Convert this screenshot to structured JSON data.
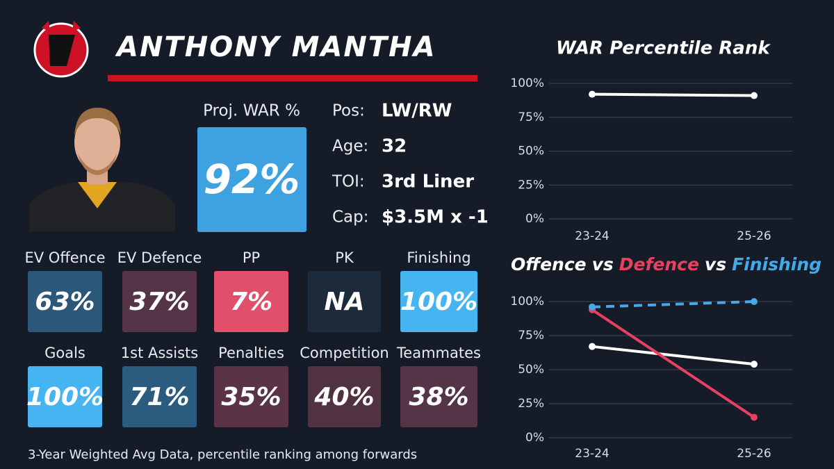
{
  "header": {
    "name": "ANTHONY MANTHA"
  },
  "projection": {
    "label": "Proj. WAR %",
    "value": "92%"
  },
  "info": [
    {
      "label": "Pos:",
      "value": "LW/RW"
    },
    {
      "label": "Age:",
      "value": "32"
    },
    {
      "label": "TOI:",
      "value": "3rd Liner"
    },
    {
      "label": "Cap:",
      "value": "$3.5M x -1"
    }
  ],
  "stats": [
    {
      "label": "EV Offence",
      "value": "63%",
      "color": "#2b5778"
    },
    {
      "label": "EV Defence",
      "value": "37%",
      "color": "#553447"
    },
    {
      "label": "PP",
      "value": "7%",
      "color": "#e0506a"
    },
    {
      "label": "PK",
      "value": "NA",
      "color": "#1d2a3b"
    },
    {
      "label": "Finishing",
      "value": "100%",
      "color": "#45b4f0"
    },
    {
      "label": "Goals",
      "value": "100%",
      "color": "#45b4f0"
    },
    {
      "label": "1st Assists",
      "value": "71%",
      "color": "#2b5c80"
    },
    {
      "label": "Penalties",
      "value": "35%",
      "color": "#5a3446"
    },
    {
      "label": "Competition",
      "value": "40%",
      "color": "#513241"
    },
    {
      "label": "Teammates",
      "value": "38%",
      "color": "#553447"
    }
  ],
  "footnote": "3-Year Weighted Avg Data, percentile ranking among forwards",
  "chart_data": [
    {
      "type": "line",
      "title": "WAR Percentile Rank",
      "categories": [
        "23-24",
        "25-26"
      ],
      "series": [
        {
          "name": "WAR",
          "color": "#ffffff",
          "linestyle": "solid",
          "values": [
            92,
            91
          ]
        }
      ],
      "ylim": [
        0,
        100
      ],
      "yticks": [
        {
          "value": 0,
          "label": "0%"
        },
        {
          "value": 25,
          "label": "25%"
        },
        {
          "value": 50,
          "label": "50%"
        },
        {
          "value": 75,
          "label": "75%"
        },
        {
          "value": 100,
          "label": "100%"
        }
      ],
      "grid": true
    },
    {
      "type": "line",
      "title_separator": "vs",
      "categories": [
        "23-24",
        "25-26"
      ],
      "series": [
        {
          "name": "Offence",
          "color": "#ffffff",
          "linestyle": "solid",
          "values": [
            67,
            54
          ]
        },
        {
          "name": "Defence",
          "color": "#e8405f",
          "linestyle": "solid",
          "values": [
            94,
            15
          ]
        },
        {
          "name": "Finishing",
          "color": "#45a8e8",
          "linestyle": "dashed",
          "values": [
            96,
            100
          ]
        }
      ],
      "ylim": [
        0,
        100
      ],
      "yticks": [
        {
          "value": 0,
          "label": "0%"
        },
        {
          "value": 25,
          "label": "25%"
        },
        {
          "value": 50,
          "label": "50%"
        },
        {
          "value": 75,
          "label": "75%"
        },
        {
          "value": 100,
          "label": "100%"
        }
      ],
      "grid": true
    }
  ]
}
